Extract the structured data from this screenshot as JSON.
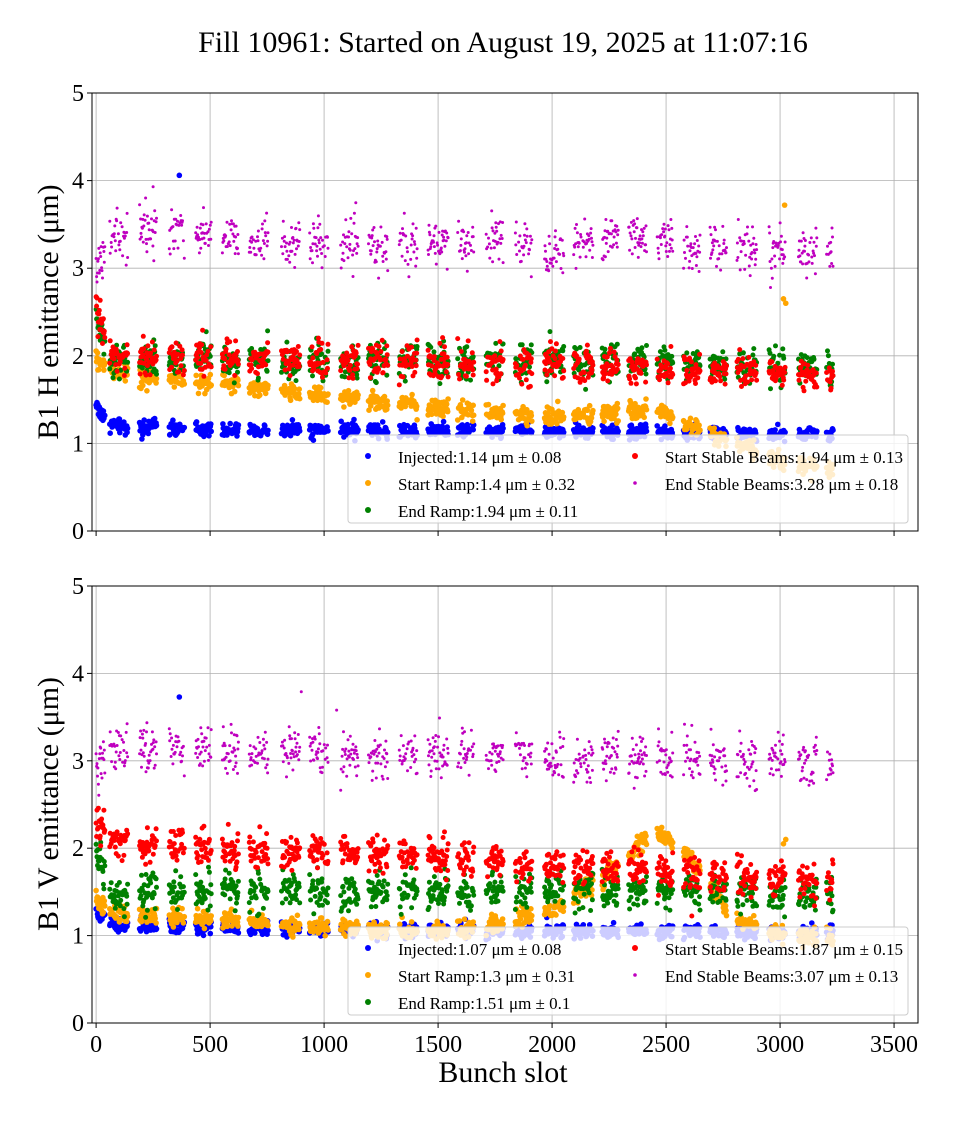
{
  "chart_data": {
    "title": "Fill 10961: Started on August 19, 2025 at 11:07:16",
    "type": "scatter",
    "xlabel": "Bunch slot",
    "xlim": [
      -18,
      3605
    ],
    "xticks": [
      0,
      500,
      1000,
      1500,
      2000,
      2500,
      3000,
      3500
    ],
    "grid": true,
    "colors": {
      "Injected": "#0000ff",
      "Start Ramp": "#ffa500",
      "End Ramp": "#008000",
      "Start Stable Beams": "#ff0000",
      "End Stable Beams": "#bf00bf"
    },
    "panels": [
      {
        "ylabel": "B1 H emittance (μm)",
        "ylim": [
          0,
          5
        ],
        "yticks": [
          0,
          1,
          2,
          3,
          4,
          5
        ],
        "legend_position": "lower-right",
        "legend": [
          "Injected:1.14 μm ± 0.08",
          "Start Ramp:1.4 μm ± 0.32",
          "End Ramp:1.94 μm ± 0.11",
          "Start Stable Beams:1.94 μm ± 0.13",
          "End Stable Beams:3.28 μm ± 0.18"
        ],
        "series": [
          {
            "name": "Injected",
            "trend": [
              [
                0,
                1.45
              ],
              [
                60,
                1.2
              ],
              [
                500,
                1.15
              ],
              [
                1500,
                1.15
              ],
              [
                2500,
                1.12
              ],
              [
                3230,
                1.1
              ]
            ],
            "outliers": [
              [
                365,
                4.06
              ]
            ]
          },
          {
            "name": "Start Ramp",
            "trend": [
              [
                0,
                1.95
              ],
              [
                100,
                1.8
              ],
              [
                500,
                1.7
              ],
              [
                800,
                1.6
              ],
              [
                1200,
                1.5
              ],
              [
                1500,
                1.4
              ],
              [
                1800,
                1.35
              ],
              [
                2000,
                1.3
              ],
              [
                2300,
                1.35
              ],
              [
                2450,
                1.4
              ],
              [
                2600,
                1.2
              ],
              [
                2800,
                1.0
              ],
              [
                3000,
                0.8
              ],
              [
                3230,
                0.7
              ]
            ],
            "outliers": [
              [
                3015,
                2.65
              ],
              [
                3025,
                2.6
              ],
              [
                3020,
                3.72
              ]
            ]
          },
          {
            "name": "End Ramp",
            "trend": [
              [
                0,
                2.5
              ],
              [
                60,
                1.95
              ],
              [
                1500,
                1.95
              ],
              [
                2500,
                1.92
              ],
              [
                3230,
                1.8
              ]
            ],
            "outliers": []
          },
          {
            "name": "Start Stable Beams",
            "trend": [
              [
                0,
                2.6
              ],
              [
                60,
                2.0
              ],
              [
                1000,
                1.95
              ],
              [
                2000,
                1.9
              ],
              [
                3230,
                1.78
              ]
            ],
            "outliers": []
          },
          {
            "name": "End Stable Beams",
            "trend": [
              [
                0,
                2.9
              ],
              [
                60,
                3.35
              ],
              [
                300,
                3.45
              ],
              [
                600,
                3.35
              ],
              [
                1000,
                3.25
              ],
              [
                1500,
                3.25
              ],
              [
                1800,
                3.35
              ],
              [
                2000,
                3.2
              ],
              [
                2300,
                3.4
              ],
              [
                2600,
                3.25
              ],
              [
                3230,
                3.2
              ]
            ],
            "outliers": [
              [
                250,
                3.93
              ]
            ]
          }
        ]
      },
      {
        "ylabel": "B1 V emittance (μm)",
        "ylim": [
          0,
          5
        ],
        "yticks": [
          0,
          1,
          2,
          3,
          4,
          5
        ],
        "legend_position": "lower-right",
        "legend": [
          "Injected:1.07 μm ± 0.08",
          "Start Ramp:1.3 μm ± 0.31",
          "End Ramp:1.51 μm ± 0.1",
          "Start Stable Beams:1.87 μm ± 0.15",
          "End Stable Beams:3.07 μm ± 0.13"
        ],
        "series": [
          {
            "name": "Injected",
            "trend": [
              [
                0,
                1.3
              ],
              [
                60,
                1.12
              ],
              [
                500,
                1.08
              ],
              [
                1500,
                1.06
              ],
              [
                2500,
                1.05
              ],
              [
                3230,
                1.03
              ]
            ],
            "outliers": [
              [
                365,
                3.73
              ]
            ]
          },
          {
            "name": "Start Ramp",
            "trend": [
              [
                0,
                1.4
              ],
              [
                100,
                1.25
              ],
              [
                700,
                1.15
              ],
              [
                1000,
                1.1
              ],
              [
                1500,
                1.05
              ],
              [
                1800,
                1.15
              ],
              [
                2000,
                1.3
              ],
              [
                2250,
                1.7
              ],
              [
                2450,
                2.2
              ],
              [
                2600,
                1.9
              ],
              [
                2800,
                1.2
              ],
              [
                3000,
                1.0
              ],
              [
                3230,
                0.95
              ]
            ],
            "outliers": [
              [
                3015,
                2.05
              ],
              [
                3025,
                2.1
              ]
            ]
          },
          {
            "name": "End Ramp",
            "trend": [
              [
                0,
                2.0
              ],
              [
                60,
                1.5
              ],
              [
                1500,
                1.5
              ],
              [
                2500,
                1.52
              ],
              [
                3230,
                1.45
              ]
            ],
            "outliers": []
          },
          {
            "name": "Start Stable Beams",
            "trend": [
              [
                0,
                2.3
              ],
              [
                60,
                2.1
              ],
              [
                500,
                2.0
              ],
              [
                1000,
                1.95
              ],
              [
                1500,
                1.9
              ],
              [
                2000,
                1.8
              ],
              [
                2500,
                1.72
              ],
              [
                3230,
                1.62
              ]
            ],
            "outliers": []
          },
          {
            "name": "End Stable Beams",
            "trend": [
              [
                0,
                2.8
              ],
              [
                60,
                3.15
              ],
              [
                400,
                3.15
              ],
              [
                1000,
                3.05
              ],
              [
                1800,
                3.1
              ],
              [
                2000,
                3.0
              ],
              [
                2600,
                3.05
              ],
              [
                3230,
                2.95
              ]
            ],
            "outliers": [
              [
                900,
                3.79
              ],
              [
                1055,
                3.58
              ]
            ]
          }
        ]
      }
    ]
  }
}
